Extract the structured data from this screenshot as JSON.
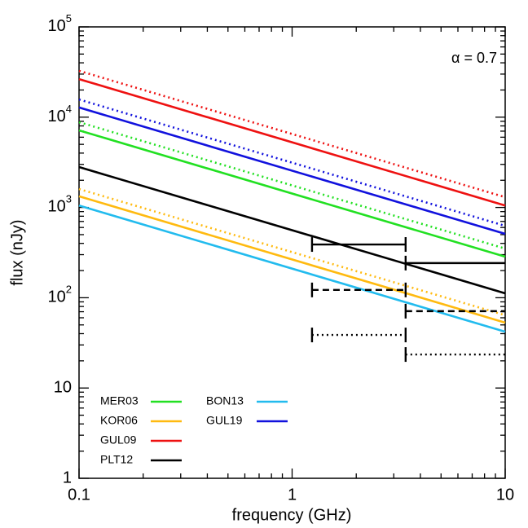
{
  "chart_data": {
    "type": "line",
    "annotation": "α = 0.7",
    "x_label": "frequency (GHz)",
    "y_label": "flux (nJy)",
    "x": [
      0.1,
      10
    ],
    "series": [
      {
        "name": "MER03",
        "color": "#22e022",
        "dash": "solid",
        "values": [
          7140,
          285
        ]
      },
      {
        "name": "KOR06",
        "color": "#ffba10",
        "dash": "solid",
        "values": [
          1330,
          53
        ]
      },
      {
        "name": "GUL09",
        "color": "#ee1111",
        "dash": "solid",
        "values": [
          26400,
          1050
        ]
      },
      {
        "name": "PLT12",
        "color": "#000000",
        "dash": "solid",
        "values": [
          2800,
          112
        ]
      },
      {
        "name": "BON13",
        "color": "#22bbee",
        "dash": "solid",
        "values": [
          1050,
          42
        ]
      },
      {
        "name": "GUL19",
        "color": "#1111dd",
        "dash": "solid",
        "values": [
          12800,
          510
        ]
      },
      {
        "color": "#22e022",
        "dash": "dotted",
        "values": [
          8800,
          350
        ]
      },
      {
        "color": "#ffba10",
        "dash": "dotted",
        "values": [
          1600,
          64
        ]
      },
      {
        "color": "#ee1111",
        "dash": "dotted",
        "values": [
          32600,
          1300
        ]
      },
      {
        "color": "#1111dd",
        "dash": "dotted",
        "values": [
          15700,
          625
        ]
      }
    ],
    "limits": [
      {
        "color": "#000000",
        "dash": "solid",
        "bins": [
          1.24,
          3.41,
          10
        ],
        "values": [
          389,
          242
        ]
      },
      {
        "color": "#000000",
        "dash": "dashed",
        "bins": [
          1.24,
          3.41,
          10
        ],
        "values": [
          122,
          71
        ]
      },
      {
        "color": "#000000",
        "dash": "dotted",
        "bins": [
          1.24,
          3.41,
          10
        ],
        "values": [
          38.7,
          23.5
        ]
      }
    ],
    "xlog": true,
    "ylog": true,
    "xlim": [
      0.1,
      10
    ],
    "ylim": [
      1,
      100000
    ],
    "xticks": [
      0.1,
      1,
      10
    ],
    "yticks": [
      1,
      10,
      {
        "value": 100,
        "label": "10",
        "exponent": "2"
      },
      {
        "value": 1000,
        "label": "10",
        "exponent": "3"
      },
      {
        "value": 10000,
        "label": "10",
        "exponent": "4"
      },
      {
        "value": 100000,
        "label": "10",
        "exponent": "5"
      }
    ],
    "xminorticks": [
      0.2,
      0.3,
      0.4,
      0.5,
      0.6,
      0.7,
      0.8,
      0.9,
      2,
      3,
      4,
      5,
      6,
      7,
      8,
      9
    ],
    "yminorticks": [
      2,
      3,
      4,
      5,
      6,
      7,
      8,
      9,
      20,
      30,
      40,
      50,
      60,
      70,
      80,
      90,
      200,
      300,
      400,
      500,
      600,
      700,
      800,
      900,
      2000,
      3000,
      4000,
      5000,
      6000,
      7000,
      8000,
      9000,
      20000,
      30000,
      40000,
      50000,
      60000,
      70000,
      80000,
      90000
    ],
    "legend": "lower left"
  }
}
